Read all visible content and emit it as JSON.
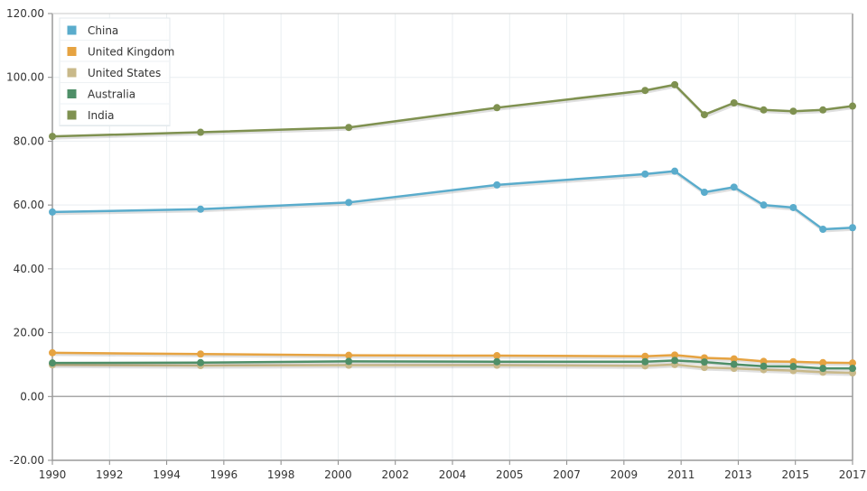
{
  "chart_data": {
    "type": "line",
    "title": "",
    "xlabel": "",
    "ylabel": "",
    "xlim": [
      1990,
      2017
    ],
    "ylim": [
      -20,
      120
    ],
    "grid": true,
    "legend_position": "top-left",
    "x_ticks": [
      "1990",
      "1992",
      "1994",
      "1996",
      "1998",
      "2000",
      "2002",
      "2004",
      "2005",
      "2007",
      "2009",
      "2011",
      "2013",
      "2015",
      "2017"
    ],
    "y_ticks": [
      "120.00",
      "100.00",
      "80.00",
      "60.00",
      "40.00",
      "20.00",
      "0.00",
      "-20.00"
    ],
    "series": [
      {
        "name": "China",
        "color": "#5aaccc",
        "x": [
          1990,
          1995,
          2000,
          2005,
          2010,
          2011,
          2012,
          2013,
          2014,
          2015,
          2016,
          2017
        ],
        "values": [
          57.8,
          58.7,
          60.8,
          66.3,
          69.7,
          70.6,
          64.0,
          65.6,
          60.0,
          59.2,
          52.4,
          52.9
        ]
      },
      {
        "name": "United Kingdom",
        "color": "#e6a341",
        "x": [
          1990,
          1995,
          2000,
          2005,
          2010,
          2011,
          2012,
          2013,
          2014,
          2015,
          2016,
          2017
        ],
        "values": [
          13.7,
          13.3,
          12.9,
          12.8,
          12.6,
          13.0,
          12.1,
          11.8,
          11.0,
          10.9,
          10.6,
          10.5
        ]
      },
      {
        "name": "United States",
        "color": "#c9b98a",
        "x": [
          1990,
          1995,
          2000,
          2005,
          2010,
          2011,
          2012,
          2013,
          2014,
          2015,
          2016,
          2017
        ],
        "values": [
          9.9,
          9.7,
          9.8,
          9.8,
          9.6,
          10.0,
          9.1,
          8.8,
          8.4,
          8.1,
          7.6,
          7.4
        ]
      },
      {
        "name": "Australia",
        "color": "#4f8f68",
        "x": [
          1990,
          1995,
          2000,
          2005,
          2010,
          2011,
          2012,
          2013,
          2014,
          2015,
          2016,
          2017
        ],
        "values": [
          10.5,
          10.6,
          11.0,
          10.9,
          10.9,
          11.3,
          10.8,
          10.1,
          9.5,
          9.4,
          8.8,
          8.8
        ]
      },
      {
        "name": "India",
        "color": "#7f9150",
        "x": [
          1990,
          1995,
          2000,
          2005,
          2010,
          2011,
          2012,
          2013,
          2014,
          2015,
          2016,
          2017
        ],
        "values": [
          81.5,
          82.8,
          84.3,
          90.5,
          95.9,
          97.7,
          88.3,
          92.0,
          89.8,
          89.4,
          89.8,
          91.0
        ]
      }
    ]
  }
}
